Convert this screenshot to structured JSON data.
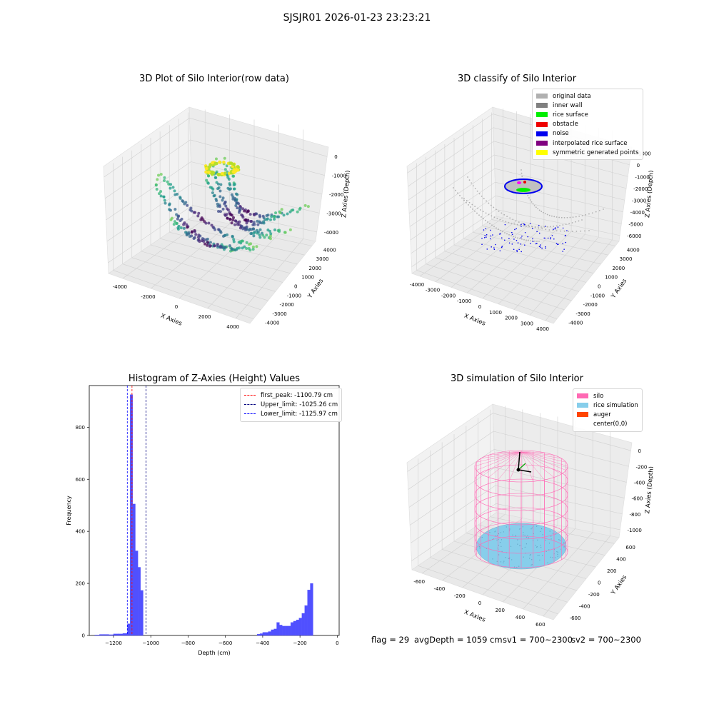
{
  "suptitle": "SJSJR01 2026-01-23 23:23:21",
  "chart_data": [
    {
      "type": "scatter",
      "title": "3D Plot of Silo Interior(row data)",
      "xlabel": "X Axies",
      "ylabel": "Y Axies",
      "zlabel": "Z Axies (Depth)",
      "xticks": [
        "-4000",
        "-2000",
        "0",
        "2000",
        "4000"
      ],
      "yticks": [
        "-4000",
        "-3000",
        "-2000",
        "-1000",
        "0",
        "1000",
        "2000",
        "3000",
        "4000"
      ],
      "zticks": [
        "0",
        "-1000",
        "-2000",
        "-3000",
        "-4000"
      ],
      "colormap": "viridis",
      "grid": true
    },
    {
      "type": "scatter",
      "title": "3D classify of Silo Interior",
      "xlabel": "X Axies",
      "ylabel": "Y Axies",
      "zlabel": "Z Axies (Depth)",
      "xticks": [
        "-4000",
        "-3000",
        "-2000",
        "-1000",
        "0",
        "1000",
        "2000",
        "3000",
        "4000"
      ],
      "yticks": [
        "-4000",
        "-3000",
        "-2000",
        "-1000",
        "0",
        "1000",
        "2000",
        "3000",
        "4000"
      ],
      "zticks": [
        "1000",
        "0",
        "-1000",
        "-2000",
        "-3000",
        "-4000",
        "-5000",
        "-6000"
      ],
      "legend_position": "top-right",
      "legend": [
        {
          "label": "original data",
          "color": "#b0b0b0"
        },
        {
          "label": "inner wall",
          "color": "#808080"
        },
        {
          "label": "rice surface",
          "color": "#00ee00"
        },
        {
          "label": "obstacle",
          "color": "#ee0000"
        },
        {
          "label": "noise",
          "color": "#0000ee"
        },
        {
          "label": "interpolated rice surface",
          "color": "#800080"
        },
        {
          "label": "symmetric generated points",
          "color": "#ffff00"
        }
      ],
      "grid": true
    },
    {
      "type": "bar",
      "title": "Histogram of Z-Axies (Height) Values",
      "xlabel": "Depth (cm)",
      "ylabel": "Frequency",
      "xlim": [
        -1330,
        10
      ],
      "ylim": [
        0,
        960
      ],
      "xticks": [
        -1200,
        -1000,
        -800,
        -600,
        -400,
        -200,
        0
      ],
      "yticks": [
        0,
        200,
        400,
        600,
        800
      ],
      "bar_color": "#5050ff",
      "bins": [
        {
          "x0": -1300,
          "x1": -1275,
          "y": 2
        },
        {
          "x0": -1275,
          "x1": -1250,
          "y": 4
        },
        {
          "x0": -1250,
          "x1": -1225,
          "y": 4
        },
        {
          "x0": -1225,
          "x1": -1200,
          "y": 3
        },
        {
          "x0": -1200,
          "x1": -1175,
          "y": 6
        },
        {
          "x0": -1175,
          "x1": -1150,
          "y": 6
        },
        {
          "x0": -1150,
          "x1": -1125,
          "y": 8
        },
        {
          "x0": -1125,
          "x1": -1111,
          "y": 45
        },
        {
          "x0": -1111,
          "x1": -1097,
          "y": 925
        },
        {
          "x0": -1097,
          "x1": -1083,
          "y": 505
        },
        {
          "x0": -1083,
          "x1": -1069,
          "y": 325
        },
        {
          "x0": -1069,
          "x1": -1055,
          "y": 262
        },
        {
          "x0": -1055,
          "x1": -1041,
          "y": 173
        },
        {
          "x0": -430,
          "x1": -415,
          "y": 5
        },
        {
          "x0": -415,
          "x1": -400,
          "y": 7
        },
        {
          "x0": -400,
          "x1": -385,
          "y": 12
        },
        {
          "x0": -385,
          "x1": -370,
          "y": 12
        },
        {
          "x0": -370,
          "x1": -355,
          "y": 15
        },
        {
          "x0": -355,
          "x1": -340,
          "y": 22
        },
        {
          "x0": -340,
          "x1": -325,
          "y": 25
        },
        {
          "x0": -325,
          "x1": -310,
          "y": 50
        },
        {
          "x0": -310,
          "x1": -295,
          "y": 40
        },
        {
          "x0": -295,
          "x1": -280,
          "y": 36
        },
        {
          "x0": -280,
          "x1": -265,
          "y": 36
        },
        {
          "x0": -265,
          "x1": -250,
          "y": 36
        },
        {
          "x0": -250,
          "x1": -235,
          "y": 50
        },
        {
          "x0": -235,
          "x1": -220,
          "y": 55
        },
        {
          "x0": -220,
          "x1": -205,
          "y": 60
        },
        {
          "x0": -205,
          "x1": -190,
          "y": 67
        },
        {
          "x0": -190,
          "x1": -175,
          "y": 85
        },
        {
          "x0": -175,
          "x1": -160,
          "y": 115
        },
        {
          "x0": -160,
          "x1": -145,
          "y": 175
        },
        {
          "x0": -145,
          "x1": -130,
          "y": 200
        }
      ],
      "lines": [
        {
          "label": "first_peak: -1100.79 cm",
          "x": -1100.79,
          "color": "#ff0000"
        },
        {
          "label": "Upper_limit: -1025.26 cm",
          "x": -1025.26,
          "color": "#000080"
        },
        {
          "label": "Lower_limit: -1125.97 cm",
          "x": -1125.97,
          "color": "#0000ff"
        }
      ],
      "legend_position": "top-right"
    },
    {
      "type": "surface",
      "title": "3D simulation of Silo Interior",
      "xlabel": "X Axies",
      "ylabel": "Y Axies",
      "zlabel": "Z Axies (Depth)",
      "xticks": [
        "-600",
        "-400",
        "-200",
        "0",
        "200",
        "400",
        "600"
      ],
      "yticks": [
        "-600",
        "-400",
        "-200",
        "0",
        "200",
        "400",
        "600"
      ],
      "zticks": [
        "0",
        "-200",
        "-400",
        "-600",
        "-800",
        "-1000"
      ],
      "legend_position": "top-right",
      "legend": [
        {
          "label": "silo",
          "color": "#ff69b4"
        },
        {
          "label": "rice simulation",
          "color": "#87ceeb"
        },
        {
          "label": "auger",
          "color": "#ff4500"
        },
        {
          "label": "center(0,0)",
          "color": "none"
        }
      ],
      "grid": true
    }
  ],
  "footer": {
    "flag": "flag = 29",
    "avg": "avgDepth = 1059 cm",
    "sv1": "sv1 = 700~2300",
    "sv2": "sv2 = 700~2300"
  }
}
